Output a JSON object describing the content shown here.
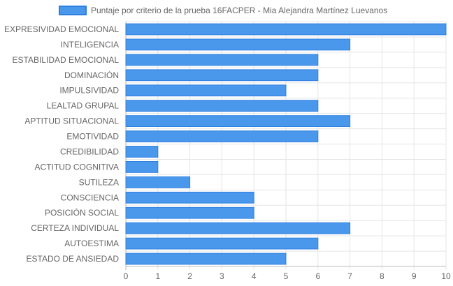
{
  "chart_data": {
    "type": "bar",
    "orientation": "horizontal",
    "categories": [
      "EXPRESIVIDAD EMOCIONAL",
      "INTELIGENCIA",
      "ESTABILIDAD EMOCIONAL",
      "DOMINACIÓN",
      "IMPULSIVIDAD",
      "LEALTAD GRUPAL",
      "APTITUD SITUACIONAL",
      "EMOTIVIDAD",
      "CREDIBILIDAD",
      "ACTITUD COGNITIVA",
      "SUTILEZA",
      "CONSCIENCIA",
      "POSICIÓN SOCIAL",
      "CERTEZA INDIVIDUAL",
      "AUTOESTIMA",
      "ESTADO DE ANSIEDAD"
    ],
    "series": [
      {
        "name": "Puntaje por criterio de la prueba 16FACPER - Mia Alejandra Martínez Luevanos",
        "values": [
          10,
          7,
          6,
          6,
          5,
          6,
          7,
          6,
          1,
          1,
          2,
          4,
          4,
          7,
          6,
          5
        ],
        "color": "#4a98ec",
        "border_color": "#2d7fe0"
      }
    ],
    "xlim": [
      0,
      10
    ],
    "x_ticks": [
      "0",
      "1",
      "2",
      "3",
      "4",
      "5",
      "6",
      "7",
      "8",
      "9",
      "10"
    ],
    "legend": "top",
    "grid": true,
    "grid_color": "#e5e5e5"
  }
}
